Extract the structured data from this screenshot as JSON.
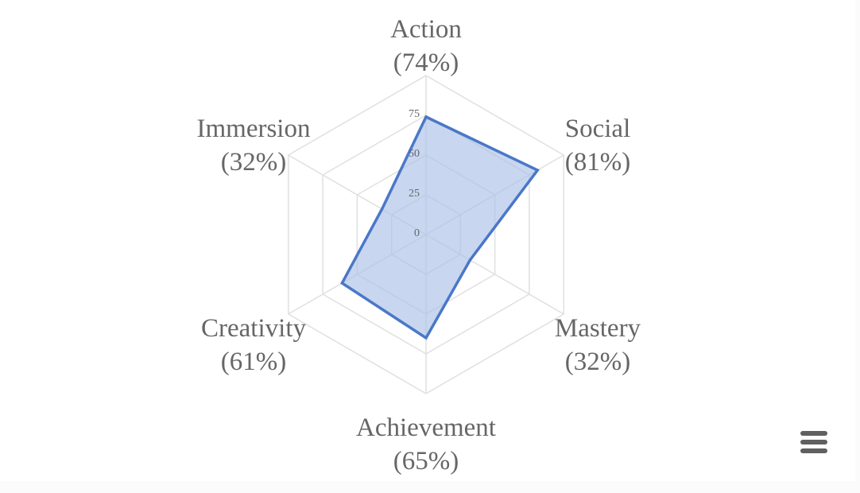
{
  "chart_data": {
    "type": "radar",
    "axes": [
      "Action",
      "Social",
      "Mastery",
      "Achievement",
      "Creativity",
      "Immersion"
    ],
    "axis_percent_labels": [
      "(74%)",
      "(81%)",
      "(32%)",
      "(65%)",
      "(61%)",
      "(32%)"
    ],
    "values": [
      74,
      81,
      32,
      65,
      61,
      32
    ],
    "ticks": [
      0,
      25,
      50,
      75
    ],
    "ylim": [
      0,
      100
    ],
    "grid": true,
    "colors": {
      "series_stroke": "#4a78c8",
      "series_fill": "#aac0e8",
      "grid": "#e0e0e0",
      "text": "#666666"
    }
  },
  "toolbar": {
    "menu_icon": "hamburger-menu-icon"
  }
}
